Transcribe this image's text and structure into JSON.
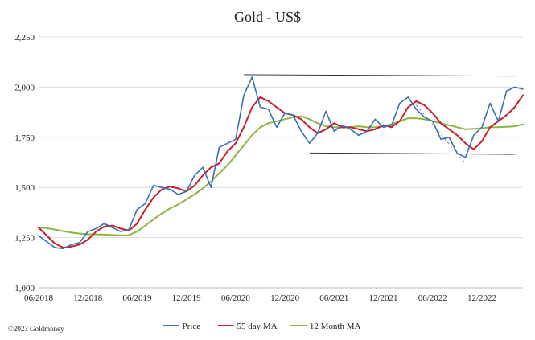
{
  "chart_data": {
    "type": "line",
    "title": "Gold - US$",
    "xlabel": "",
    "ylabel": "",
    "x_tick_labels": [
      "06/2018",
      "12/2018",
      "06/2019",
      "12/2019",
      "06/2020",
      "12/2020",
      "06/2021",
      "12/2021",
      "06/2022",
      "12/2022"
    ],
    "y_tick_labels": [
      "1,000",
      "1,250",
      "1,500",
      "1,750",
      "2,000",
      "2,250"
    ],
    "ylim": [
      1000,
      2250
    ],
    "xlim": [
      "2018-06",
      "2023-05"
    ],
    "grid": "horizontal",
    "legend_position": "bottom",
    "credit": "©2023 Goldmoney",
    "series": [
      {
        "name": "Price",
        "color": "#3a6fb5",
        "x": [
          "2018-06",
          "2018-07",
          "2018-08",
          "2018-09",
          "2018-10",
          "2018-11",
          "2018-12",
          "2019-01",
          "2019-02",
          "2019-03",
          "2019-04",
          "2019-05",
          "2019-06",
          "2019-07",
          "2019-08",
          "2019-09",
          "2019-10",
          "2019-11",
          "2019-12",
          "2020-01",
          "2020-02",
          "2020-03",
          "2020-04",
          "2020-05",
          "2020-06",
          "2020-07",
          "2020-08",
          "2020-09",
          "2020-10",
          "2020-11",
          "2020-12",
          "2021-01",
          "2021-02",
          "2021-03",
          "2021-04",
          "2021-05",
          "2021-06",
          "2021-07",
          "2021-08",
          "2021-09",
          "2021-10",
          "2021-11",
          "2021-12",
          "2022-01",
          "2022-02",
          "2022-03",
          "2022-04",
          "2022-05",
          "2022-06",
          "2022-07",
          "2022-08",
          "2022-09",
          "2022-10",
          "2022-11",
          "2022-12",
          "2023-01",
          "2023-02",
          "2023-03",
          "2023-04",
          "2023-05"
        ],
        "values": [
          1260,
          1230,
          1200,
          1195,
          1215,
          1225,
          1280,
          1295,
          1320,
          1300,
          1280,
          1290,
          1390,
          1420,
          1510,
          1500,
          1490,
          1465,
          1480,
          1560,
          1600,
          1500,
          1700,
          1720,
          1740,
          1960,
          2050,
          1900,
          1890,
          1800,
          1870,
          1860,
          1780,
          1720,
          1770,
          1880,
          1780,
          1810,
          1790,
          1760,
          1780,
          1840,
          1800,
          1810,
          1920,
          1950,
          1890,
          1850,
          1830,
          1740,
          1750,
          1670,
          1650,
          1760,
          1800,
          1920,
          1830,
          1980,
          2000,
          1990
        ]
      },
      {
        "name": "55 day MA",
        "color": "#c8202e",
        "x": [
          "2018-06",
          "2018-07",
          "2018-08",
          "2018-09",
          "2018-10",
          "2018-11",
          "2018-12",
          "2019-01",
          "2019-02",
          "2019-03",
          "2019-04",
          "2019-05",
          "2019-06",
          "2019-07",
          "2019-08",
          "2019-09",
          "2019-10",
          "2019-11",
          "2019-12",
          "2020-01",
          "2020-02",
          "2020-03",
          "2020-04",
          "2020-05",
          "2020-06",
          "2020-07",
          "2020-08",
          "2020-09",
          "2020-10",
          "2020-11",
          "2020-12",
          "2021-01",
          "2021-02",
          "2021-03",
          "2021-04",
          "2021-05",
          "2021-06",
          "2021-07",
          "2021-08",
          "2021-09",
          "2021-10",
          "2021-11",
          "2021-12",
          "2022-01",
          "2022-02",
          "2022-03",
          "2022-04",
          "2022-05",
          "2022-06",
          "2022-07",
          "2022-08",
          "2022-09",
          "2022-10",
          "2022-11",
          "2022-12",
          "2023-01",
          "2023-02",
          "2023-03",
          "2023-04",
          "2023-05"
        ],
        "values": [
          1300,
          1260,
          1220,
          1200,
          1205,
          1215,
          1240,
          1280,
          1305,
          1310,
          1295,
          1285,
          1320,
          1390,
          1450,
          1490,
          1505,
          1495,
          1480,
          1510,
          1560,
          1600,
          1620,
          1680,
          1720,
          1800,
          1900,
          1950,
          1930,
          1900,
          1870,
          1860,
          1840,
          1800,
          1770,
          1790,
          1820,
          1800,
          1800,
          1790,
          1780,
          1790,
          1810,
          1800,
          1830,
          1900,
          1930,
          1910,
          1870,
          1820,
          1790,
          1760,
          1720,
          1690,
          1730,
          1800,
          1830,
          1860,
          1900,
          1960
        ]
      },
      {
        "name": "12 Month MA",
        "color": "#8db542",
        "x": [
          "2018-06",
          "2018-07",
          "2018-08",
          "2018-09",
          "2018-10",
          "2018-11",
          "2018-12",
          "2019-01",
          "2019-02",
          "2019-03",
          "2019-04",
          "2019-05",
          "2019-06",
          "2019-07",
          "2019-08",
          "2019-09",
          "2019-10",
          "2019-11",
          "2019-12",
          "2020-01",
          "2020-02",
          "2020-03",
          "2020-04",
          "2020-05",
          "2020-06",
          "2020-07",
          "2020-08",
          "2020-09",
          "2020-10",
          "2020-11",
          "2020-12",
          "2021-01",
          "2021-02",
          "2021-03",
          "2021-04",
          "2021-05",
          "2021-06",
          "2021-07",
          "2021-08",
          "2021-09",
          "2021-10",
          "2021-11",
          "2021-12",
          "2022-01",
          "2022-02",
          "2022-03",
          "2022-04",
          "2022-05",
          "2022-06",
          "2022-07",
          "2022-08",
          "2022-09",
          "2022-10",
          "2022-11",
          "2022-12",
          "2023-01",
          "2023-02",
          "2023-03",
          "2023-04",
          "2023-05"
        ],
        "values": [
          1300,
          1297,
          1290,
          1282,
          1275,
          1270,
          1267,
          1266,
          1265,
          1263,
          1261,
          1262,
          1280,
          1310,
          1340,
          1370,
          1395,
          1415,
          1440,
          1465,
          1495,
          1530,
          1570,
          1610,
          1660,
          1710,
          1760,
          1800,
          1820,
          1830,
          1840,
          1850,
          1855,
          1840,
          1820,
          1805,
          1800,
          1798,
          1800,
          1805,
          1800,
          1800,
          1805,
          1815,
          1830,
          1845,
          1845,
          1840,
          1830,
          1820,
          1810,
          1800,
          1790,
          1792,
          1795,
          1800,
          1800,
          1802,
          1805,
          1815
        ]
      }
    ],
    "annotations": [
      {
        "type": "resistance_line",
        "color": "#222222",
        "from": {
          "x": "2020-07",
          "y": 2062
        },
        "to": {
          "x": "2023-04",
          "y": 2055
        }
      },
      {
        "type": "support_line",
        "color": "#222222",
        "from": {
          "x": "2021-03",
          "y": 1672
        },
        "to": {
          "x": "2023-04",
          "y": 1665
        }
      },
      {
        "type": "trend_line",
        "color": "#8080b0",
        "dashed": true,
        "from": {
          "x": "2022-04",
          "y": 1910
        },
        "to": {
          "x": "2022-10",
          "y": 1620
        }
      }
    ]
  }
}
